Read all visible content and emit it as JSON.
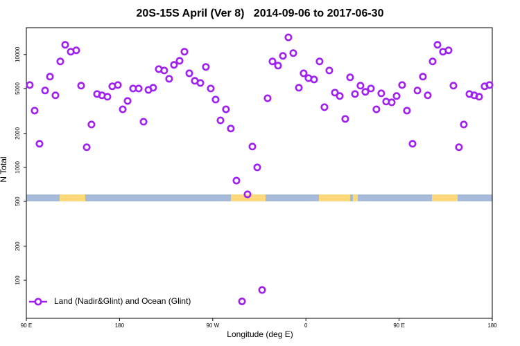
{
  "chart_data": {
    "type": "scatter",
    "title": "20S-15S April (Ver 8)   2014-09-06 to 2017-06-30",
    "x_label": "Longitude (deg E)",
    "y_label": "N Total",
    "log_y": true,
    "grid": false,
    "legend_corner": "bottom-left",
    "xlim": [
      90,
      540
    ],
    "xticks": [
      {
        "value": 90,
        "label": "90 E"
      },
      180,
      {
        "value": 270,
        "label": "90 W"
      },
      {
        "value": 360,
        "label": "0"
      },
      {
        "value": 450,
        "label": "90 E"
      },
      {
        "value": 540,
        "label": "180"
      }
    ],
    "ylim": [
      46,
      17300
    ],
    "yticks": [
      100,
      200,
      500,
      1000,
      2000,
      5000,
      10000
    ],
    "series": [
      {
        "name": "Land (Nadir&Glint) and Ocean (Glint)",
        "color": "#a020f0",
        "x": [
          93.3,
          98.0,
          102.7,
          108.1,
          112.8,
          118.1,
          122.8,
          127.5,
          132.9,
          138.2,
          142.9,
          148.3,
          152.9,
          158.3,
          163.0,
          168.3,
          173.0,
          178.4,
          183.1,
          187.8,
          193.1,
          198.5,
          203.2,
          207.9,
          212.5,
          217.9,
          223.2,
          227.9,
          232.6,
          238.0,
          242.7,
          247.4,
          252.7,
          258.1,
          263.4,
          268.1,
          272.8,
          277.5,
          282.8,
          287.5,
          292.9,
          298.3,
          303.6,
          308.3,
          313.0,
          317.7,
          323.0,
          327.7,
          333.1,
          337.8,
          343.1,
          347.8,
          353.2,
          357.8,
          362.5,
          367.9,
          373.2,
          377.9,
          382.6,
          388.0,
          392.7,
          398.0,
          402.7,
          407.4,
          412.7,
          417.4,
          422.8,
          428.1,
          432.8,
          437.5,
          442.9,
          447.6,
          452.9,
          457.6,
          463.0,
          467.7,
          473.0,
          477.7,
          482.4,
          487.1,
          492.4,
          497.8,
          502.5,
          507.8,
          512.5,
          517.9,
          522.6,
          527.3,
          532.6,
          537.3
        ],
        "values": [
          5370,
          3185,
          1620,
          4800,
          6370,
          4350,
          8690,
          12200,
          10600,
          10900,
          5300,
          1510,
          2400,
          4470,
          4350,
          4230,
          5230,
          5370,
          3270,
          3880,
          5000,
          5000,
          2540,
          4860,
          5080,
          7430,
          7220,
          6100,
          8100,
          8800,
          10600,
          6820,
          5850,
          5600,
          7770,
          5000,
          3990,
          2610,
          3270,
          2210,
          764,
          65,
          577,
          1530,
          1000,
          82,
          4100,
          8690,
          7980,
          9730,
          14200,
          10300,
          5080,
          6820,
          6180,
          6010,
          8690,
          3420,
          7220,
          4600,
          4290,
          2690,
          6280,
          4470,
          5300,
          4670,
          5000,
          3270,
          4530,
          3830,
          3770,
          4290,
          5370,
          3185,
          1620,
          4800,
          6370,
          4350,
          8690,
          12200,
          10600,
          10900,
          5300,
          1510,
          2400,
          4470,
          4350,
          4230,
          5230,
          5370
        ]
      }
    ]
  }
}
